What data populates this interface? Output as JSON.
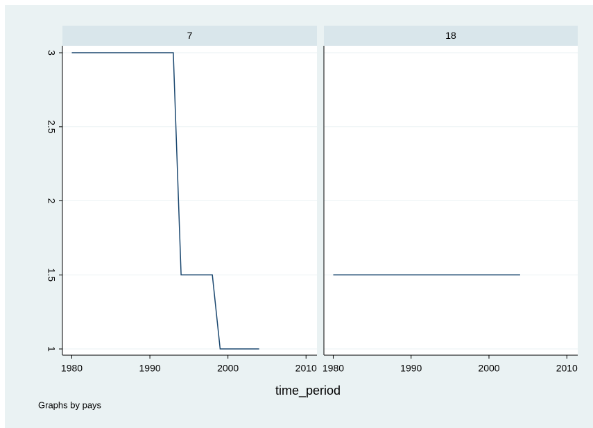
{
  "chart_data": [
    {
      "type": "line",
      "title": "7",
      "x": [
        1980,
        1993,
        1994,
        1998,
        1999,
        2004
      ],
      "series": [
        {
          "color": "#1a476f",
          "values": [
            3,
            3,
            1.5,
            1.5,
            1,
            1
          ]
        }
      ],
      "xlim": [
        1978.8,
        2011.4
      ],
      "xticks": [
        1980,
        1990,
        2000,
        2010
      ],
      "ylim": [
        0.958,
        3.047
      ],
      "yticks": [
        1,
        1.5,
        2,
        2.5,
        3
      ],
      "grid": true
    },
    {
      "type": "line",
      "title": "18",
      "x": [
        1980,
        2004
      ],
      "series": [
        {
          "color": "#1a476f",
          "values": [
            1.5,
            1.5
          ]
        }
      ],
      "xlim": [
        1978.8,
        2011.4
      ],
      "xticks": [
        1980,
        1990,
        2000,
        2010
      ],
      "ylim": [
        0.958,
        3.047
      ],
      "yticks": [
        1,
        1.5,
        2,
        2.5,
        3
      ],
      "grid": true
    }
  ],
  "xlabel": "time_period",
  "note": "Graphs by pays"
}
